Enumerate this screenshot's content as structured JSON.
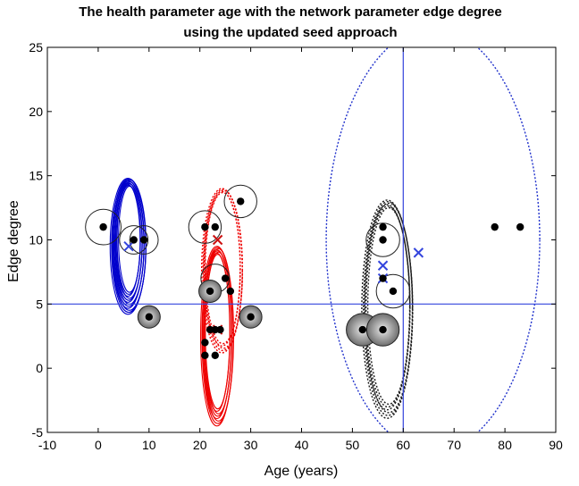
{
  "chart_data": {
    "type": "scatter",
    "title": [
      "The health parameter age with the network parameter edge degree",
      "using the updated seed approach"
    ],
    "xlabel": "Age (years)",
    "ylabel": "Edge degree",
    "xlim": [
      -10,
      90
    ],
    "ylim": [
      -5,
      25
    ],
    "xticks": [
      -10,
      0,
      10,
      20,
      30,
      40,
      50,
      60,
      70,
      80,
      90
    ],
    "yticks": [
      -5,
      0,
      5,
      10,
      15,
      20,
      25
    ],
    "grid": false,
    "reference_lines": {
      "x": 60,
      "y": 5,
      "color": "#3344dd"
    },
    "points": [
      {
        "x": 1,
        "y": 11
      },
      {
        "x": 7,
        "y": 10
      },
      {
        "x": 9,
        "y": 10
      },
      {
        "x": 10,
        "y": 4
      },
      {
        "x": 21,
        "y": 11
      },
      {
        "x": 23,
        "y": 11
      },
      {
        "x": 28,
        "y": 13
      },
      {
        "x": 25,
        "y": 7
      },
      {
        "x": 22,
        "y": 6
      },
      {
        "x": 26,
        "y": 6
      },
      {
        "x": 30,
        "y": 4
      },
      {
        "x": 22,
        "y": 3
      },
      {
        "x": 23,
        "y": 3
      },
      {
        "x": 24,
        "y": 3
      },
      {
        "x": 21,
        "y": 2
      },
      {
        "x": 21,
        "y": 1
      },
      {
        "x": 23,
        "y": 1
      },
      {
        "x": 56,
        "y": 11
      },
      {
        "x": 56,
        "y": 10
      },
      {
        "x": 56,
        "y": 7
      },
      {
        "x": 58,
        "y": 6
      },
      {
        "x": 52,
        "y": 3
      },
      {
        "x": 56,
        "y": 3
      },
      {
        "x": 78,
        "y": 11
      },
      {
        "x": 83,
        "y": 11
      }
    ],
    "circles": [
      {
        "x": 1,
        "y": 11,
        "r": 3.5,
        "filled": false
      },
      {
        "x": 7,
        "y": 10,
        "r": 2.8,
        "filled": false
      },
      {
        "x": 9,
        "y": 10,
        "r": 2.8,
        "filled": false
      },
      {
        "x": 10,
        "y": 4,
        "r": 2.2,
        "filled": true
      },
      {
        "x": 21,
        "y": 11,
        "r": 3.2,
        "filled": false
      },
      {
        "x": 28,
        "y": 13,
        "r": 3.2,
        "filled": false
      },
      {
        "x": 23,
        "y": 7,
        "r": 2.8,
        "filled": false
      },
      {
        "x": 22,
        "y": 6,
        "r": 2.2,
        "filled": true
      },
      {
        "x": 30,
        "y": 4,
        "r": 2.2,
        "filled": true
      },
      {
        "x": 56,
        "y": 10,
        "r": 3.3,
        "filled": false
      },
      {
        "x": 58,
        "y": 6,
        "r": 3.3,
        "filled": false
      },
      {
        "x": 52,
        "y": 3,
        "r": 3.2,
        "filled": true
      },
      {
        "x": 56,
        "y": 3,
        "r": 3.2,
        "filled": true
      }
    ],
    "cluster_ellipses": [
      {
        "cx": 6,
        "cy": 9.5,
        "rx": 3.5,
        "ry": 5.3,
        "color": "#0000cc",
        "style": "solid",
        "count": 12
      },
      {
        "cx": 23.5,
        "cy": 2.5,
        "rx": 3.2,
        "ry": 7.0,
        "color": "#ee0000",
        "style": "solid",
        "count": 8
      },
      {
        "cx": 24.5,
        "cy": 7.6,
        "rx": 4.0,
        "ry": 6.4,
        "color": "#ee0000",
        "style": "dotted",
        "count": 5
      },
      {
        "cx": 57,
        "cy": 4.6,
        "rx": 5.0,
        "ry": 8.5,
        "color": "#1a1a1a",
        "style": "dotted",
        "count": 6
      },
      {
        "cx": 66,
        "cy": 10,
        "rx": 21,
        "ry": 16.5,
        "color": "#2233cc",
        "style": "dotted",
        "count": 1
      }
    ],
    "centroids": [
      {
        "x": 6,
        "y": 9.5,
        "color": "#3344dd"
      },
      {
        "x": 23.5,
        "y": 10,
        "color": "#cc1111"
      },
      {
        "x": 23.5,
        "y": 3,
        "color": "#cc1111"
      },
      {
        "x": 56,
        "y": 8,
        "color": "#3344dd"
      },
      {
        "x": 56,
        "y": 7,
        "color": "#3344dd"
      },
      {
        "x": 63,
        "y": 9,
        "color": "#3344dd"
      }
    ]
  }
}
